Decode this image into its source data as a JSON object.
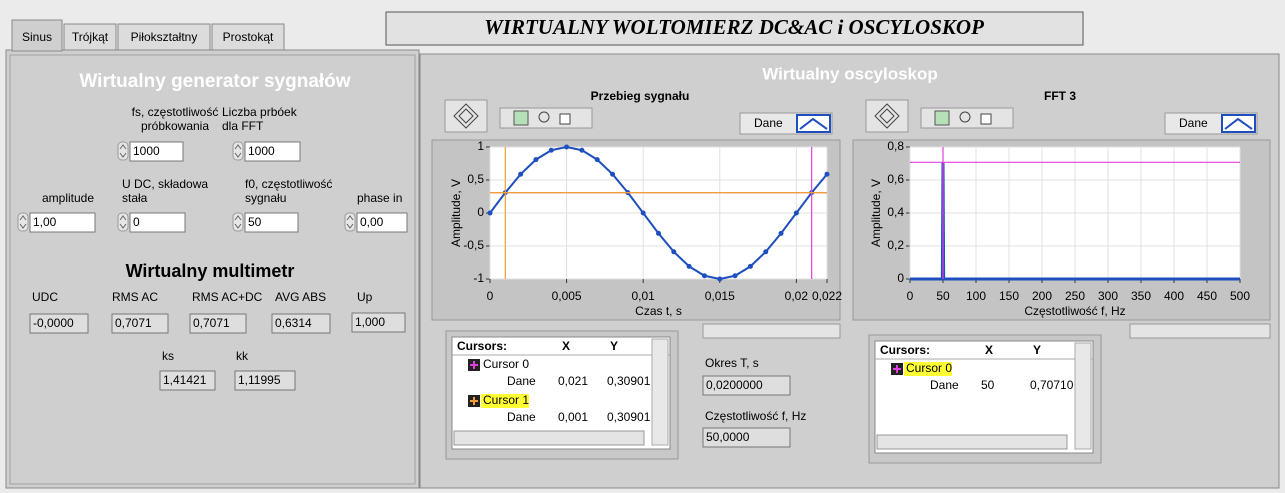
{
  "tabs": [
    "Sinus",
    "Trójkąt",
    "Piłokształtny",
    "Prostokąt"
  ],
  "title": "WIRTUALNY WOLTOMIERZ DC&AC i OSCYLOSKOP",
  "generator": {
    "title": "Wirtualny generator sygnałów",
    "fs": {
      "label": [
        "fs, częstotliwość",
        "próbkowania"
      ],
      "value": "1000"
    },
    "nfft": {
      "label": [
        "Liczba prbóek",
        "dla FFT"
      ],
      "value": "1000"
    },
    "amplitude": {
      "label": [
        "amplitude"
      ],
      "value": "1,00"
    },
    "udc": {
      "label": [
        "U DC, składowa",
        "stała"
      ],
      "value": "0"
    },
    "f0": {
      "label": [
        "f0, częstotliwość",
        "sygnału"
      ],
      "value": "50"
    },
    "phase": {
      "label": [
        "phase in"
      ],
      "value": "0,00"
    }
  },
  "multimeter": {
    "title": "Wirtualny multimetr",
    "udc": {
      "label": [
        "UDC"
      ],
      "value": "-0,0000"
    },
    "rms_ac": {
      "label": [
        "RMS AC"
      ],
      "value": "0,7071"
    },
    "rms_acdc": {
      "label": [
        "RMS AC+DC"
      ],
      "value": "0,7071"
    },
    "avg_abs": {
      "label": [
        "AVG ABS"
      ],
      "value": "0,6314"
    },
    "up": {
      "label": [
        "Up"
      ],
      "value": "1,000"
    },
    "ks": {
      "label": [
        "ks"
      ],
      "value": "1,41421"
    },
    "kk": {
      "label": [
        "kk"
      ],
      "value": "1,11995"
    }
  },
  "oscilloscope": {
    "title": "Wirtualny oscyloskop",
    "period": {
      "label": [
        "Okres T, s"
      ],
      "value": "0,0200000"
    },
    "frequency": {
      "label": [
        "Częstotliwość f, Hz"
      ],
      "value": "50,0000"
    },
    "cursor_headers": [
      "Cursors:",
      "X",
      "Y"
    ],
    "signal_chart": {
      "type": "line",
      "title": "Przebieg sygnału",
      "x_label": "Czas t, s",
      "y_label": "Amplitude, V",
      "x": [
        0,
        0.001,
        0.002,
        0.003,
        0.004,
        0.005,
        0.006,
        0.007,
        0.008,
        0.009,
        0.01,
        0.011,
        0.012,
        0.013,
        0.014,
        0.015,
        0.016,
        0.017,
        0.018,
        0.019,
        0.02,
        0.021,
        0.022
      ],
      "series": [
        {
          "name": "Dane",
          "color": "#1f4fbf",
          "values": [
            0,
            0.309,
            0.5878,
            0.809,
            0.9511,
            1,
            0.9511,
            0.809,
            0.5878,
            0.309,
            0,
            -0.309,
            -0.5878,
            -0.809,
            -0.9511,
            -1,
            -0.9511,
            -0.809,
            -0.5878,
            -0.309,
            0,
            0.309,
            0.5878
          ]
        }
      ],
      "markers": true,
      "line_width": 2,
      "grid": true,
      "xlim": [
        0,
        0.022
      ],
      "ylim": [
        -1,
        1
      ],
      "xticks": [
        0,
        {
          "value": 0.005,
          "label": "0,005"
        },
        {
          "value": 0.01,
          "label": "0,01"
        },
        {
          "value": 0.015,
          "label": "0,015"
        },
        {
          "value": 0.02,
          "label": "0,02"
        },
        {
          "value": 0.022,
          "label": "0,022"
        }
      ],
      "yticks": [
        -1,
        {
          "value": -0.5,
          "label": "-0,5"
        },
        0,
        {
          "value": 0.5,
          "label": "0,5"
        },
        1
      ],
      "cursors": [
        {
          "name": "Cursor 1",
          "plot": "Dane",
          "x": 0.001,
          "y": 0.30901,
          "x_label": "0,001",
          "y_label": "0,30901",
          "color": "#f0a030"
        },
        {
          "name": "Cursor 0",
          "plot": "Dane",
          "x": 0.021,
          "y": 0.30901,
          "x_label": "0,021",
          "y_label": "0,30901",
          "color": "#e040e0"
        }
      ],
      "cursor_order": [
        1,
        0
      ]
    },
    "fft_chart": {
      "type": "line",
      "title": "FFT 3",
      "x_label": "Częstotliwość f, Hz",
      "y_label": "Amplitude, V",
      "x": [
        0,
        49,
        50,
        51,
        500
      ],
      "series": [
        {
          "name": "Dane",
          "color": "#1f4fbf",
          "values": [
            0,
            0,
            0.7071,
            0,
            0
          ]
        }
      ],
      "markers": false,
      "line_width": 3,
      "grid": true,
      "xlim": [
        0,
        500
      ],
      "ylim": [
        0,
        0.8
      ],
      "xticks": [
        0,
        50,
        100,
        150,
        200,
        250,
        300,
        350,
        400,
        450,
        500
      ],
      "yticks": [
        0,
        {
          "value": 0.2,
          "label": "0,2"
        },
        {
          "value": 0.4,
          "label": "0,4"
        },
        {
          "value": 0.6,
          "label": "0,6"
        },
        {
          "value": 0.8,
          "label": "0,8"
        }
      ],
      "cursors": [
        {
          "name": "Cursor 0",
          "plot": "Dane",
          "x": 50,
          "y": 0.7071,
          "x_label": "50",
          "y_label": "0,70710",
          "color": "#e040e0"
        }
      ],
      "cursor_order": [
        0
      ]
    }
  }
}
